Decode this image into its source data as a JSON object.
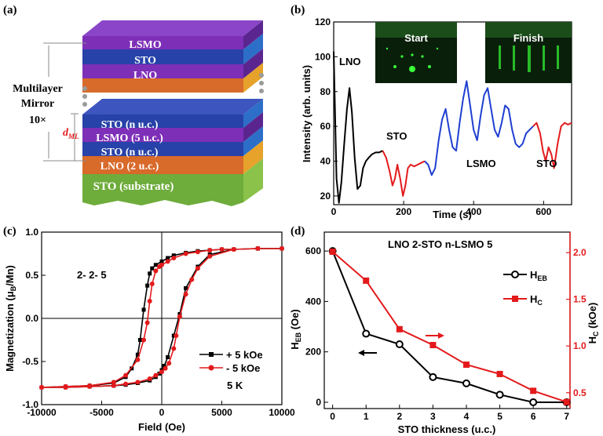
{
  "panel_labels": {
    "a": "(a)",
    "b": "(b)",
    "c": "(c)",
    "d": "(d)"
  },
  "diagram": {
    "top_layers": [
      "LSMO",
      "STO",
      "LNO"
    ],
    "stack_layers": [
      "STO (n u.c.)",
      "LSMO (5 u.c.)",
      "STO (n u.c.)",
      "LNO (2 u.c.)"
    ],
    "substrate": "STO (substrate)",
    "mirror_label_1": "Multilayer",
    "mirror_label_2": "Mirror",
    "repeat": "10×",
    "d_label": "d",
    "d_sub": "ML",
    "colors": {
      "lsmo": "#7e2fb8",
      "sto": "#2742a8",
      "lno": "#d86a2a",
      "lno_side": "#e6a22a",
      "substrate": "#6eac3b"
    }
  },
  "chart_data": [
    {
      "id": "b",
      "type": "line",
      "xlabel": "Time (s)",
      "ylabel": "Intensity (arb. units)",
      "xlim": [
        0,
        680
      ],
      "ylim": [
        15,
        120
      ],
      "xticks": [
        0,
        200,
        400,
        600
      ],
      "yticks": [
        20,
        40,
        60,
        80,
        100,
        120
      ],
      "annotations": [
        "LNO",
        "STO",
        "LSMO",
        "STO"
      ],
      "insets": [
        "Start",
        "Finish"
      ],
      "series": [
        {
          "name": "LNO",
          "color": "#000000",
          "x": [
            0,
            8,
            15,
            22,
            30,
            38,
            45,
            52,
            60,
            68,
            76,
            84,
            92,
            100,
            110,
            120,
            130,
            140
          ],
          "y": [
            103,
            30,
            16,
            28,
            50,
            70,
            82,
            68,
            42,
            24,
            26,
            36,
            40,
            42,
            44,
            45,
            45,
            46
          ]
        },
        {
          "name": "STO",
          "color": "#e31a1c",
          "x": [
            140,
            150,
            160,
            168,
            175,
            182,
            190,
            198,
            205,
            212,
            220,
            230,
            240,
            250,
            260
          ],
          "y": [
            46,
            42,
            34,
            26,
            30,
            38,
            30,
            20,
            26,
            36,
            38,
            37,
            38,
            39,
            40
          ]
        },
        {
          "name": "LSMO",
          "color": "#1f3fd1",
          "x": [
            260,
            270,
            280,
            290,
            300,
            310,
            320,
            330,
            340,
            350,
            360,
            370,
            380,
            390,
            400,
            410,
            420,
            430,
            440,
            450,
            460,
            470,
            480,
            490,
            500,
            510,
            520,
            530,
            540,
            550,
            560,
            570
          ],
          "y": [
            40,
            38,
            32,
            36,
            52,
            64,
            70,
            58,
            48,
            46,
            62,
            76,
            86,
            72,
            58,
            52,
            66,
            78,
            82,
            70,
            58,
            54,
            62,
            72,
            70,
            58,
            50,
            48,
            50,
            56,
            58,
            60
          ]
        },
        {
          "name": "STO",
          "color": "#e31a1c",
          "x": [
            570,
            580,
            590,
            598,
            606,
            614,
            622,
            630,
            640,
            650,
            660,
            670,
            680
          ],
          "y": [
            60,
            62,
            56,
            46,
            40,
            48,
            44,
            36,
            50,
            60,
            62,
            61,
            62
          ]
        }
      ]
    },
    {
      "id": "c",
      "type": "line",
      "xlabel": "Field (Oe)",
      "ylabel_main": "Magnetization (μ",
      "ylabel_sub": "B",
      "ylabel_end": "/Mn)",
      "xlim": [
        -10000,
        10000
      ],
      "ylim": [
        -1.0,
        1.0
      ],
      "xticks": [
        -10000,
        -5000,
        0,
        5000,
        10000
      ],
      "yticks": [
        -1.0,
        -0.5,
        0.0,
        0.5,
        1.0
      ],
      "annotation": "2- 2- 5",
      "temperature": "5 K",
      "legend": [
        "+ 5 kOe",
        "- 5 kOe"
      ],
      "series": [
        {
          "name": "+ 5 kOe",
          "color": "#000000",
          "x": [
            -10000,
            -8000,
            -6000,
            -4000,
            -3000,
            -2500,
            -2000,
            -1800,
            -1500,
            -1200,
            -1000,
            -800,
            -500,
            0,
            500,
            1000,
            2000,
            3000,
            4000,
            5000,
            6000,
            8000,
            10000,
            8000,
            6000,
            4000,
            3000,
            2000,
            1500,
            1000,
            500,
            200,
            0,
            -200,
            -500,
            -1000,
            -2000,
            -3000,
            -4000,
            -6000,
            -8000,
            -10000
          ],
          "y": [
            -0.8,
            -0.79,
            -0.78,
            -0.75,
            -0.68,
            -0.58,
            -0.42,
            -0.25,
            0.1,
            0.38,
            0.52,
            0.58,
            0.62,
            0.66,
            0.7,
            0.73,
            0.76,
            0.78,
            0.79,
            0.8,
            0.8,
            0.81,
            0.81,
            0.81,
            0.8,
            0.74,
            0.6,
            0.35,
            0.05,
            -0.2,
            -0.45,
            -0.55,
            -0.6,
            -0.64,
            -0.68,
            -0.72,
            -0.75,
            -0.77,
            -0.78,
            -0.79,
            -0.8,
            -0.8
          ]
        },
        {
          "name": "- 5 kOe",
          "color": "#e31a1c",
          "x": [
            -10000,
            -8000,
            -6000,
            -4000,
            -3000,
            -2000,
            -1500,
            -1200,
            -1000,
            -800,
            -500,
            -200,
            0,
            500,
            1000,
            2000,
            3000,
            4000,
            5000,
            6000,
            8000,
            10000,
            8000,
            6000,
            4000,
            3000,
            2500,
            2000,
            1500,
            1200,
            1000,
            600,
            300,
            0,
            -500,
            -1000,
            -2000,
            -3000,
            -4000,
            -6000,
            -8000,
            -10000
          ],
          "y": [
            -0.8,
            -0.79,
            -0.78,
            -0.74,
            -0.66,
            -0.48,
            -0.25,
            -0.05,
            0.2,
            0.4,
            0.55,
            0.6,
            0.62,
            0.66,
            0.7,
            0.75,
            0.77,
            0.79,
            0.8,
            0.8,
            0.81,
            0.81,
            0.81,
            0.8,
            0.72,
            0.58,
            0.45,
            0.28,
            0.02,
            -0.2,
            -0.35,
            -0.52,
            -0.58,
            -0.62,
            -0.66,
            -0.7,
            -0.74,
            -0.76,
            -0.78,
            -0.79,
            -0.8,
            -0.8
          ]
        }
      ]
    },
    {
      "id": "d",
      "type": "line",
      "title": "LNO 2-STO n-LSMO 5",
      "xlabel": "STO thickness (u.c.)",
      "ylabel_left": "H",
      "ylabel_left_sub": "EB",
      "ylabel_left_end": " (Oe)",
      "ylabel_right": "H",
      "ylabel_right_sub": "C",
      "ylabel_right_end": " (kOe)",
      "x": [
        0,
        1,
        2,
        3,
        4,
        5,
        6,
        7
      ],
      "xticks": [
        0,
        1,
        2,
        3,
        4,
        5,
        6,
        7
      ],
      "ylim_left": [
        -25,
        675
      ],
      "yticks_left": [
        0,
        200,
        400,
        600
      ],
      "ylim_right": [
        0.33,
        2.22
      ],
      "yticks_right": [
        0.5,
        1.0,
        1.5,
        2.0
      ],
      "series": [
        {
          "name": "H",
          "sub": "EB",
          "color": "#000000",
          "axis": "left",
          "values": [
            600,
            272,
            230,
            100,
            75,
            30,
            0,
            0
          ]
        },
        {
          "name": "H",
          "sub": "C",
          "color": "#e31a1c",
          "axis": "right",
          "values": [
            2.01,
            1.7,
            1.18,
            1.01,
            0.8,
            0.7,
            0.52,
            0.4
          ]
        }
      ]
    }
  ]
}
